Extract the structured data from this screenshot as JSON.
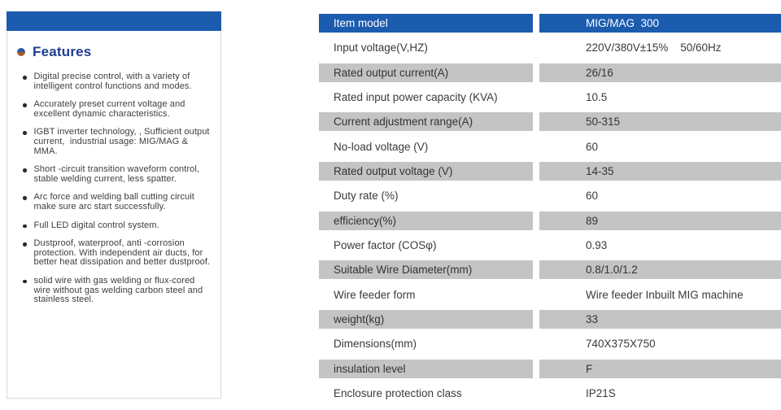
{
  "colors": {
    "accent_blue": "#1c5caf",
    "row_gray": "#c4c4c4",
    "heading_navy": "#1d3d91",
    "bullet_orange": "#a85a2a",
    "bullet_blue": "#2b57a7"
  },
  "features_panel": {
    "heading": "Features",
    "items": [
      "Digital precise control, with a variety of intelligent control functions and modes.",
      "Accurately preset current voltage and excellent dynamic characteristics.",
      "IGBT inverter technology, , Sufficient output current,  industrial usage: MIG/MAG & MMA.",
      "Short -circuit transition waveform control, stable welding current, less spatter.",
      "Arc force and welding ball cutting circuit make sure arc start successfully.",
      "Full LED digital control system.",
      "Dustproof, waterproof, anti -corrosion protection. With independent air ducts, for better heat dissipation and better dustproof.",
      "solid wire with gas welding or flux-cored wire without gas welding carbon steel and stainless steel."
    ]
  },
  "spec_table": {
    "header": {
      "label": "Item model",
      "value": "MIG/MAG  300"
    },
    "rows": [
      {
        "label": "Input voltage(V,HZ)",
        "value": "220V/380V±15%    50/60Hz"
      },
      {
        "label": "Rated output current(A)",
        "value": "26/16"
      },
      {
        "label": "Rated input power capacity (KVA)",
        "value": "10.5"
      },
      {
        "label": "Current adjustment range(A)",
        "value": "50-315"
      },
      {
        "label": "No-load voltage (V)",
        "value": "60"
      },
      {
        "label": "Rated output voltage (V)",
        "value": "14-35"
      },
      {
        "label": "Duty rate (%)",
        "value": "60"
      },
      {
        "label": "efficiency(%)",
        "value": "89"
      },
      {
        "label": "Power factor (COSφ)",
        "value": "0.93"
      },
      {
        "label": "Suitable Wire Diameter(mm)",
        "value": "0.8/1.0/1.2"
      },
      {
        "label": "Wire feeder form",
        "value": "Wire feeder Inbuilt MIG machine"
      },
      {
        "label": "weight(kg)",
        "value": "33"
      },
      {
        "label": "Dimensions(mm)",
        "value": "740X375X750"
      },
      {
        "label": "insulation level",
        "value": "F"
      },
      {
        "label": "Enclosure protection class",
        "value": "IP21S"
      }
    ]
  }
}
